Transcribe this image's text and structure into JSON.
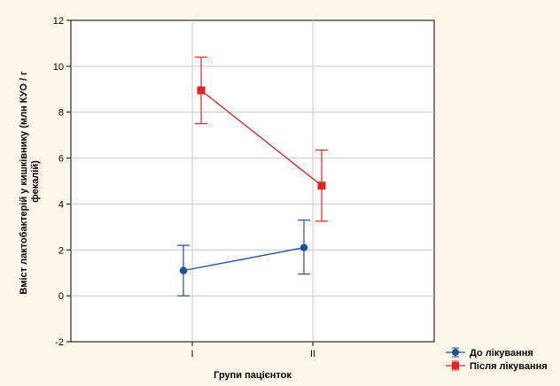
{
  "chart_data": {
    "type": "line",
    "title": "",
    "xlabel": "Групи пацієнток",
    "ylabel_lines": [
      "Вміст лактобактерій у кишківнику (млн КУО / г",
      "фекалій)"
    ],
    "categories": [
      "I",
      "II"
    ],
    "ylim": [
      -2,
      12
    ],
    "yticks": [
      -2,
      0,
      2,
      4,
      6,
      8,
      10,
      12
    ],
    "grid": true,
    "legend_position": "bottom-right",
    "series": [
      {
        "name": "До лікування",
        "color": "#1f4e9c",
        "marker": "circle",
        "values": [
          1.1,
          2.1
        ],
        "error_low": [
          0.0,
          0.95
        ],
        "error_high": [
          2.2,
          3.3
        ]
      },
      {
        "name": "Після лікування",
        "color": "#e52421",
        "marker": "square",
        "values": [
          8.95,
          4.8
        ],
        "error_low": [
          7.5,
          3.25
        ],
        "error_high": [
          10.4,
          6.35
        ]
      }
    ]
  }
}
